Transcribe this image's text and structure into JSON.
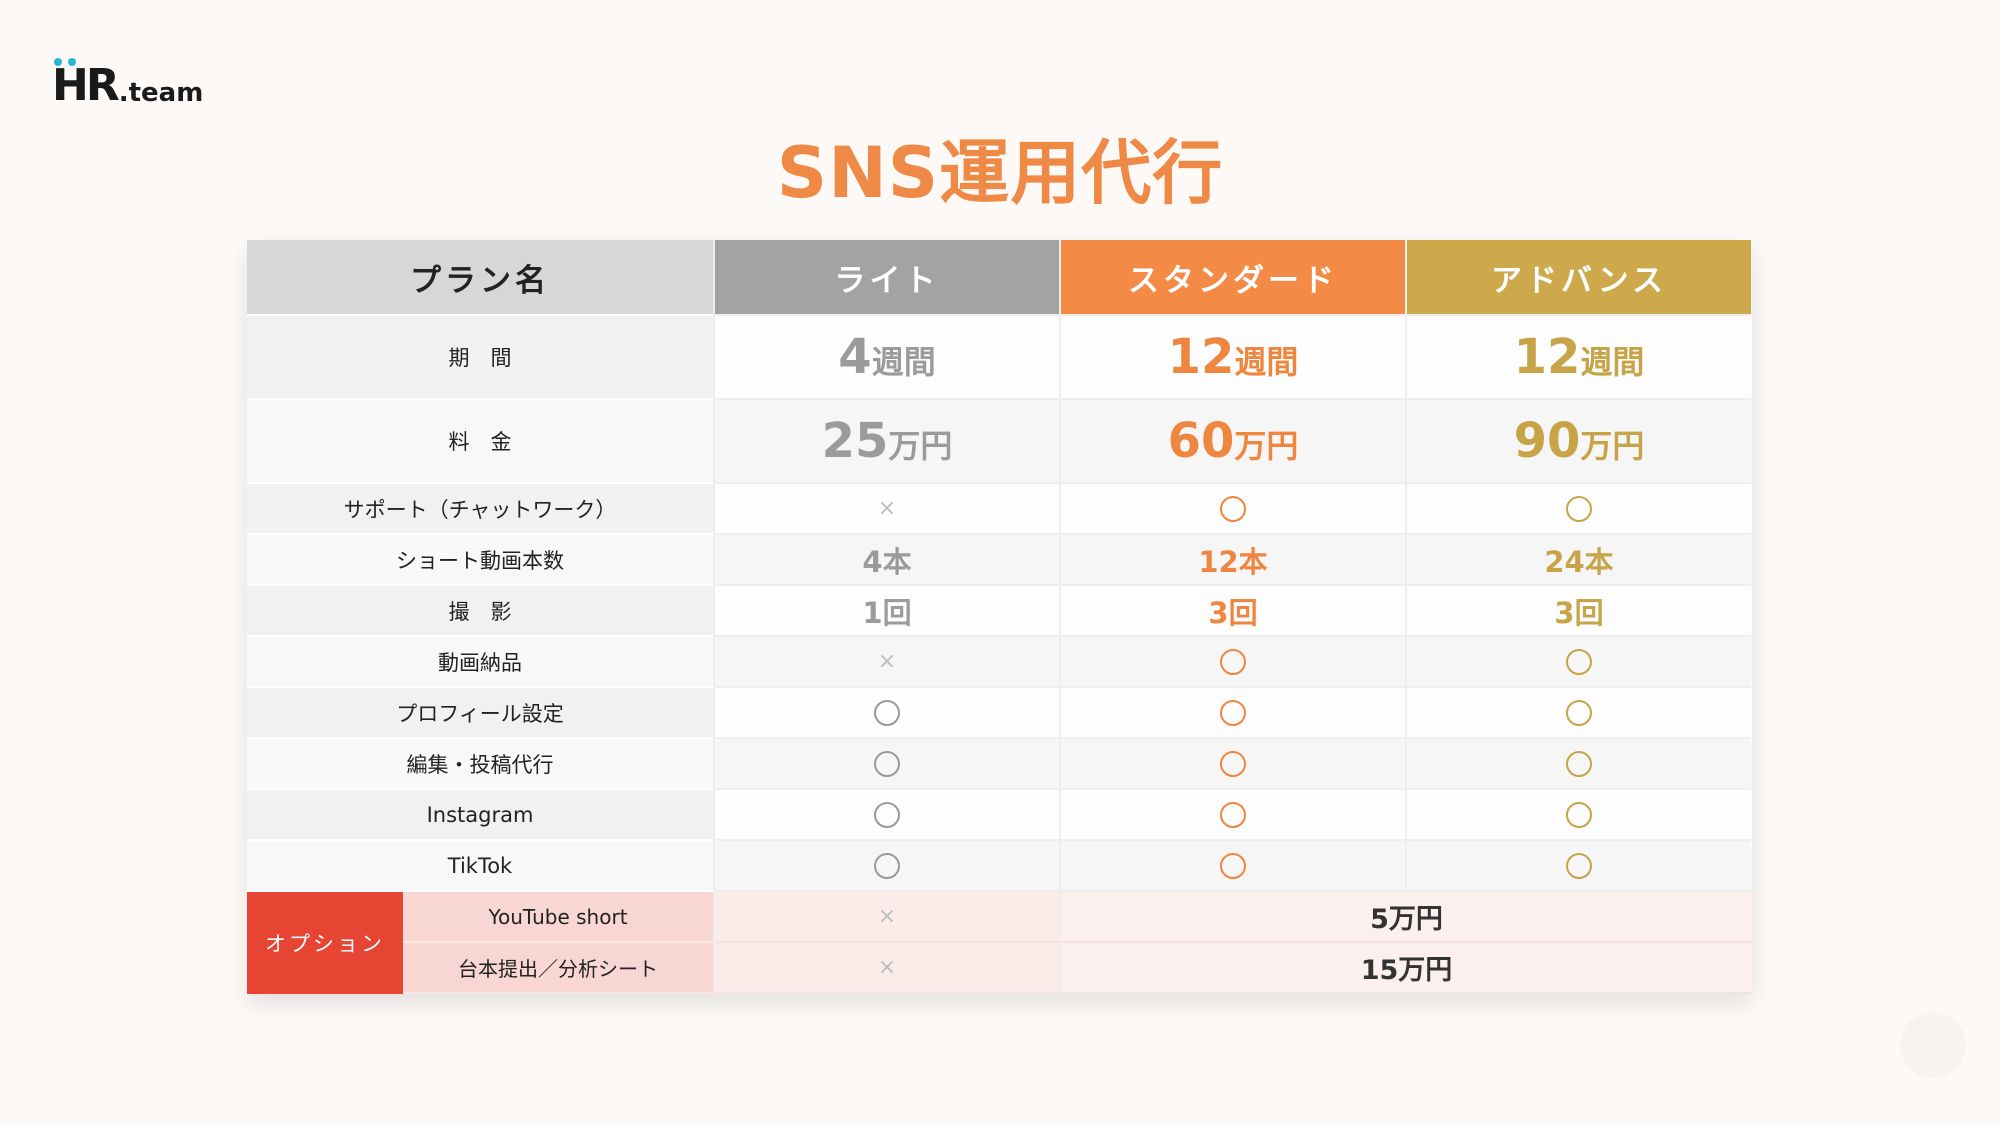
{
  "logo": {
    "mark": "HR",
    "suffix": ".team"
  },
  "title": "SNS運用代行",
  "header": {
    "plan_label": "プラン名",
    "plans": [
      "ライト",
      "スタンダード",
      "アドバンス"
    ]
  },
  "period": {
    "label": "期　間",
    "values": [
      "4",
      "12",
      "12"
    ],
    "unit": "週間"
  },
  "price": {
    "label": "料　金",
    "values": [
      "25",
      "60",
      "90"
    ],
    "unit": "万円"
  },
  "rows": [
    {
      "label": "サポート（チャットワーク）",
      "values": [
        "×",
        "○",
        "○"
      ]
    },
    {
      "label": "ショート動画本数",
      "values": [
        "4本",
        "12本",
        "24本"
      ]
    },
    {
      "label": "撮　影",
      "values": [
        "1回",
        "3回",
        "3回"
      ]
    },
    {
      "label": "動画納品",
      "values": [
        "×",
        "○",
        "○"
      ]
    },
    {
      "label": "プロフィール設定",
      "values": [
        "○",
        "○",
        "○"
      ]
    },
    {
      "label": "編集・投稿代行",
      "values": [
        "○",
        "○",
        "○"
      ]
    },
    {
      "label": "Instagram",
      "values": [
        "○",
        "○",
        "○"
      ]
    },
    {
      "label": "TikTok",
      "values": [
        "○",
        "○",
        "○"
      ]
    }
  ],
  "options": {
    "label": "オプション",
    "items": [
      {
        "label": "YouTube short",
        "lite": "×",
        "price": "5万円"
      },
      {
        "label": "台本提出／分析シート",
        "lite": "×",
        "price": "15万円"
      }
    ]
  },
  "colors": {
    "accent": "#ef8a46",
    "lite": "#a3a3a3",
    "standard": "#f38a46",
    "advance": "#cda94b",
    "option": "#e54532"
  }
}
